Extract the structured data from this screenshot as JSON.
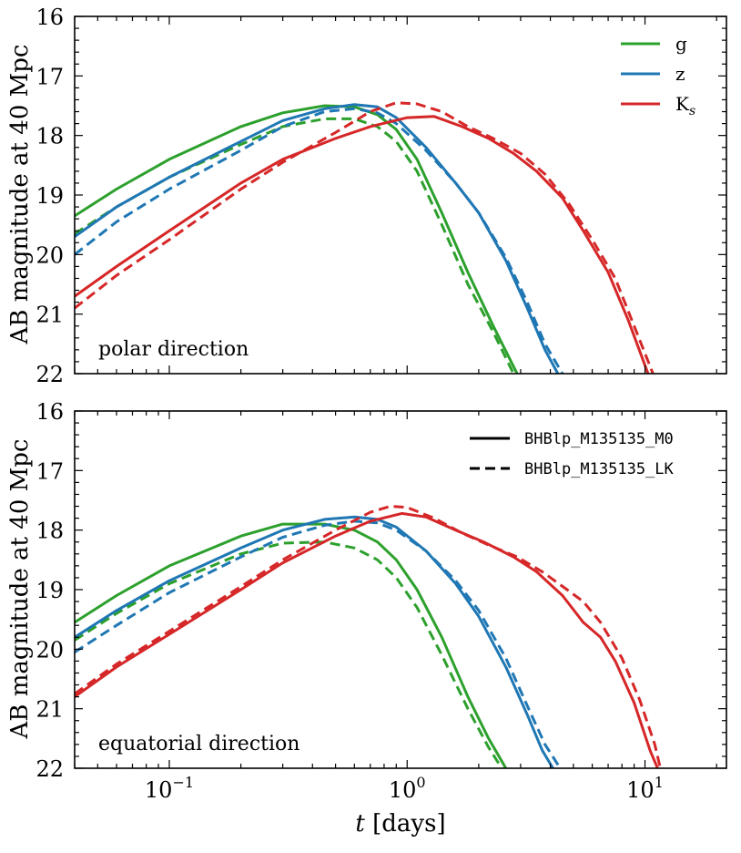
{
  "chart_data": [
    {
      "type": "line",
      "panel": "top",
      "annotation": "polar direction",
      "xlabel_prefix": "t",
      "xlabel_suffix": " [days]",
      "xscale": "log",
      "xlim": [
        0.04,
        22
      ],
      "ylabel": "AB magnitude at 40 Mpc",
      "ylim": [
        22,
        16
      ],
      "y_ticks": [
        16,
        17,
        18,
        19,
        20,
        21,
        22
      ],
      "x_tick_labels": [],
      "legend": {
        "placement": "top-right",
        "entries": [
          {
            "label": "g",
            "color": "#2ca02c",
            "style": "solid"
          },
          {
            "label": "z",
            "color": "#1f77b4",
            "style": "solid"
          },
          {
            "label": "K",
            "subscript": "s",
            "color": "#d62728",
            "style": "solid"
          }
        ]
      },
      "series": [
        {
          "name": "g BHBlp_M135135_M0",
          "band": "g",
          "model": "M0",
          "color": "#2ca02c",
          "dash": "solid",
          "x": [
            0.04,
            0.06,
            0.1,
            0.2,
            0.3,
            0.45,
            0.6,
            0.75,
            0.9,
            1.1,
            1.4,
            1.8,
            2.3,
            2.9
          ],
          "y": [
            19.35,
            18.9,
            18.4,
            17.85,
            17.62,
            17.5,
            17.52,
            17.65,
            17.9,
            18.4,
            19.3,
            20.3,
            21.2,
            22.0
          ]
        },
        {
          "name": "g BHBlp_M135135_LK",
          "band": "g",
          "model": "LK",
          "color": "#2ca02c",
          "dash": "dashed",
          "x": [
            0.04,
            0.06,
            0.1,
            0.2,
            0.3,
            0.45,
            0.6,
            0.75,
            0.9,
            1.1,
            1.4,
            1.8,
            2.3,
            2.8
          ],
          "y": [
            19.65,
            19.2,
            18.7,
            18.15,
            17.85,
            17.72,
            17.72,
            17.85,
            18.1,
            18.6,
            19.5,
            20.5,
            21.3,
            22.0
          ]
        },
        {
          "name": "z BHBlp_M135135_M0",
          "band": "z",
          "model": "M0",
          "color": "#1f77b4",
          "dash": "solid",
          "x": [
            0.04,
            0.06,
            0.1,
            0.2,
            0.3,
            0.45,
            0.6,
            0.75,
            0.9,
            1.2,
            1.6,
            2.0,
            2.6,
            3.2,
            3.8,
            4.3
          ],
          "y": [
            19.7,
            19.2,
            18.7,
            18.1,
            17.75,
            17.55,
            17.48,
            17.52,
            17.7,
            18.2,
            18.8,
            19.3,
            20.1,
            20.9,
            21.6,
            22.0
          ]
        },
        {
          "name": "z BHBlp_M135135_LK",
          "band": "z",
          "model": "LK",
          "color": "#1f77b4",
          "dash": "dashed",
          "x": [
            0.04,
            0.06,
            0.1,
            0.2,
            0.3,
            0.45,
            0.6,
            0.75,
            0.9,
            1.2,
            1.6,
            2.0,
            2.6,
            3.2,
            3.8,
            4.5
          ],
          "y": [
            20.0,
            19.45,
            18.9,
            18.25,
            17.85,
            17.6,
            17.55,
            17.62,
            17.8,
            18.25,
            18.8,
            19.3,
            20.05,
            20.8,
            21.5,
            22.0
          ]
        },
        {
          "name": "Ks BHBlp_M135135_M0",
          "band": "Ks",
          "model": "M0",
          "color": "#d62728",
          "dash": "solid",
          "x": [
            0.04,
            0.06,
            0.1,
            0.2,
            0.3,
            0.5,
            0.7,
            1.0,
            1.3,
            1.7,
            2.2,
            2.8,
            3.5,
            4.5,
            5.5,
            7.0,
            8.5,
            10.3
          ],
          "y": [
            20.7,
            20.2,
            19.6,
            18.8,
            18.4,
            18.05,
            17.85,
            17.7,
            17.68,
            17.85,
            18.05,
            18.3,
            18.6,
            19.05,
            19.6,
            20.3,
            21.1,
            22.0
          ]
        },
        {
          "name": "Ks BHBlp_M135135_LK",
          "band": "Ks",
          "model": "LK",
          "color": "#d62728",
          "dash": "dashed",
          "x": [
            0.04,
            0.06,
            0.1,
            0.2,
            0.3,
            0.5,
            0.7,
            0.9,
            1.1,
            1.4,
            1.8,
            2.3,
            3.0,
            3.8,
            4.8,
            6.0,
            7.5,
            9.0,
            10.8
          ],
          "y": [
            20.9,
            20.35,
            19.75,
            18.9,
            18.45,
            17.95,
            17.6,
            17.45,
            17.47,
            17.6,
            17.85,
            18.05,
            18.3,
            18.65,
            19.15,
            19.75,
            20.4,
            21.2,
            22.0
          ]
        }
      ]
    },
    {
      "type": "line",
      "panel": "bottom",
      "annotation": "equatorial direction",
      "xlabel_prefix": "t",
      "xlabel_suffix": " [days]",
      "xscale": "log",
      "xlim": [
        0.04,
        22
      ],
      "ylabel": "AB magnitude at 40 Mpc",
      "ylim": [
        22,
        16
      ],
      "y_ticks": [
        16,
        17,
        18,
        19,
        20,
        21,
        22
      ],
      "x_tick_labels": [
        {
          "base": "10",
          "exp": "−1",
          "value": 0.1
        },
        {
          "base": "10",
          "exp": "0",
          "value": 1
        },
        {
          "base": "10",
          "exp": "1",
          "value": 10
        }
      ],
      "legend": {
        "placement": "top-right",
        "entries": [
          {
            "label": "BHBlp_M135135_M0",
            "color": "#000000",
            "style": "solid"
          },
          {
            "label": "BHBlp_M135135_LK",
            "color": "#000000",
            "style": "dashed"
          }
        ]
      },
      "series": [
        {
          "name": "g BHBlp_M135135_M0",
          "band": "g",
          "model": "M0",
          "color": "#2ca02c",
          "dash": "solid",
          "x": [
            0.04,
            0.06,
            0.1,
            0.2,
            0.3,
            0.45,
            0.6,
            0.75,
            0.9,
            1.1,
            1.4,
            1.8,
            2.2,
            2.6
          ],
          "y": [
            19.55,
            19.1,
            18.6,
            18.1,
            17.9,
            17.9,
            18.0,
            18.2,
            18.5,
            19.0,
            19.8,
            20.8,
            21.5,
            22.0
          ]
        },
        {
          "name": "g BHBlp_M135135_LK",
          "band": "g",
          "model": "LK",
          "color": "#2ca02c",
          "dash": "dashed",
          "x": [
            0.04,
            0.06,
            0.1,
            0.2,
            0.3,
            0.45,
            0.6,
            0.75,
            0.9,
            1.1,
            1.4,
            1.8,
            2.2,
            2.5
          ],
          "y": [
            19.85,
            19.4,
            18.9,
            18.4,
            18.22,
            18.2,
            18.3,
            18.5,
            18.8,
            19.3,
            20.1,
            21.0,
            21.65,
            22.0
          ]
        },
        {
          "name": "z BHBlp_M135135_M0",
          "band": "z",
          "model": "M0",
          "color": "#1f77b4",
          "dash": "solid",
          "x": [
            0.04,
            0.06,
            0.1,
            0.2,
            0.3,
            0.45,
            0.6,
            0.75,
            0.9,
            1.2,
            1.6,
            2.0,
            2.6,
            3.2,
            3.7,
            4.1
          ],
          "y": [
            19.8,
            19.35,
            18.85,
            18.3,
            18.0,
            17.82,
            17.78,
            17.82,
            17.95,
            18.35,
            18.9,
            19.45,
            20.3,
            21.1,
            21.7,
            22.0
          ]
        },
        {
          "name": "z BHBlp_M135135_LK",
          "band": "z",
          "model": "LK",
          "color": "#1f77b4",
          "dash": "dashed",
          "x": [
            0.04,
            0.06,
            0.1,
            0.2,
            0.3,
            0.45,
            0.6,
            0.75,
            0.9,
            1.2,
            1.6,
            2.0,
            2.6,
            3.2,
            3.8,
            4.4
          ],
          "y": [
            20.05,
            19.6,
            19.05,
            18.45,
            18.12,
            17.92,
            17.85,
            17.88,
            18.0,
            18.35,
            18.85,
            19.35,
            20.15,
            20.95,
            21.6,
            22.0
          ]
        },
        {
          "name": "Ks BHBlp_M135135_M0",
          "band": "Ks",
          "model": "M0",
          "color": "#d62728",
          "dash": "solid",
          "x": [
            0.04,
            0.06,
            0.1,
            0.2,
            0.3,
            0.5,
            0.7,
            0.95,
            1.2,
            1.6,
            2.1,
            2.8,
            3.5,
            4.5,
            5.5,
            6.5,
            7.5,
            9.0,
            10.5,
            11.3
          ],
          "y": [
            20.8,
            20.3,
            19.75,
            19.0,
            18.55,
            18.1,
            17.85,
            17.72,
            17.78,
            18.0,
            18.2,
            18.45,
            18.7,
            19.1,
            19.55,
            19.8,
            20.2,
            20.9,
            21.7,
            22.0
          ]
        },
        {
          "name": "Ks BHBlp_M135135_LK",
          "band": "Ks",
          "model": "LK",
          "color": "#d62728",
          "dash": "dashed",
          "x": [
            0.04,
            0.06,
            0.1,
            0.2,
            0.3,
            0.5,
            0.7,
            0.85,
            1.0,
            1.3,
            1.7,
            2.2,
            2.9,
            3.7,
            4.7,
            5.5,
            6.5,
            8.0,
            9.5,
            11.0,
            11.6
          ],
          "y": [
            20.75,
            20.25,
            19.7,
            18.95,
            18.5,
            18.0,
            17.7,
            17.6,
            17.62,
            17.8,
            18.05,
            18.25,
            18.45,
            18.7,
            19.0,
            19.2,
            19.55,
            20.15,
            20.85,
            21.6,
            22.0
          ]
        }
      ]
    }
  ]
}
